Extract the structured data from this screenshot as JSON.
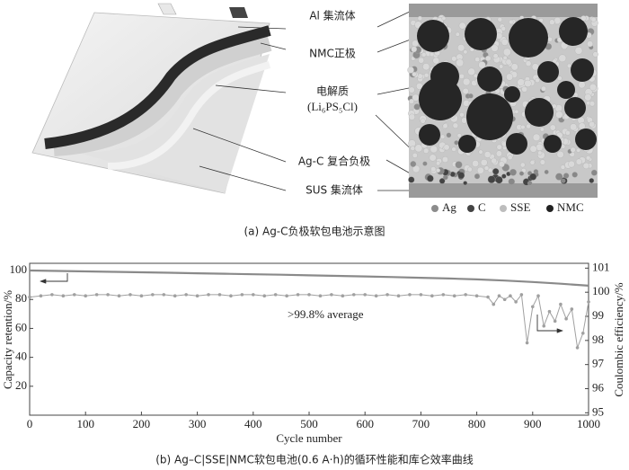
{
  "diagram": {
    "labels": [
      "Al 集流体",
      "NMC正极",
      "电解质",
      "(Li₆PS₅Cl)",
      "Ag-C 复合负极",
      "SUS 集流体"
    ],
    "legend": [
      "Ag",
      "C",
      "SSE",
      "NMC"
    ],
    "caption": "(a) Ag-C负极软包电池示意图"
  },
  "chart_data": {
    "type": "line",
    "xlabel": "Cycle number",
    "ylabel": "Capacity retention/%",
    "y2label": "Coulombic efficiency/%",
    "annotation": ">99.8% average",
    "caption": "(b) Ag–C|SSE|NMC软包电池(0.6 A·h)的循环性能和库仑效率曲线",
    "xlim": [
      0,
      1000
    ],
    "xticks": [
      0,
      100,
      200,
      300,
      400,
      500,
      600,
      700,
      800,
      900,
      1000
    ],
    "ylim": [
      0,
      105
    ],
    "yticks": [
      20,
      40,
      60,
      80,
      100
    ],
    "y2lim": [
      94.9,
      101.2
    ],
    "y2ticks": [
      95,
      96,
      97,
      98,
      99,
      100,
      101
    ],
    "series": [
      {
        "name": "Capacity retention",
        "color": "#8a8a8a",
        "axis": "y",
        "x": [
          0,
          50,
          100,
          150,
          200,
          250,
          300,
          350,
          400,
          450,
          500,
          550,
          600,
          650,
          700,
          750,
          800,
          850,
          900,
          950,
          1000
        ],
        "values": [
          100,
          99.7,
          99.4,
          99.1,
          98.8,
          98.5,
          98.1,
          97.8,
          97.4,
          97.1,
          96.7,
          96.3,
          95.9,
          95.5,
          95,
          94.5,
          93.9,
          93.1,
          92.1,
          90.9,
          89.5
        ]
      },
      {
        "name": "Coulombic efficiency",
        "color": "#a0a0a0",
        "axis": "y2",
        "x": [
          0,
          20,
          40,
          60,
          80,
          100,
          120,
          140,
          160,
          180,
          200,
          220,
          240,
          260,
          280,
          300,
          320,
          340,
          360,
          380,
          400,
          420,
          440,
          460,
          480,
          500,
          520,
          540,
          560,
          580,
          600,
          620,
          640,
          660,
          680,
          700,
          720,
          740,
          760,
          780,
          800,
          820,
          830,
          840,
          850,
          860,
          870,
          880,
          890,
          900,
          910,
          920,
          930,
          940,
          950,
          960,
          970,
          980,
          990,
          1000
        ],
        "values": [
          99.8,
          99.85,
          99.9,
          99.85,
          99.9,
          99.85,
          99.9,
          99.9,
          99.85,
          99.9,
          99.85,
          99.9,
          99.9,
          99.85,
          99.9,
          99.85,
          99.9,
          99.9,
          99.85,
          99.9,
          99.9,
          99.85,
          99.9,
          99.85,
          99.9,
          99.9,
          99.85,
          99.9,
          99.85,
          99.9,
          99.9,
          99.85,
          99.9,
          99.85,
          99.9,
          99.9,
          99.85,
          99.9,
          99.85,
          99.9,
          99.85,
          99.8,
          99.5,
          99.85,
          99.7,
          99.85,
          99.6,
          99.9,
          97.9,
          99.4,
          99.85,
          98.6,
          99.2,
          98.8,
          99.5,
          98.9,
          99.3,
          97.7,
          98.3,
          99.6
        ]
      }
    ]
  }
}
